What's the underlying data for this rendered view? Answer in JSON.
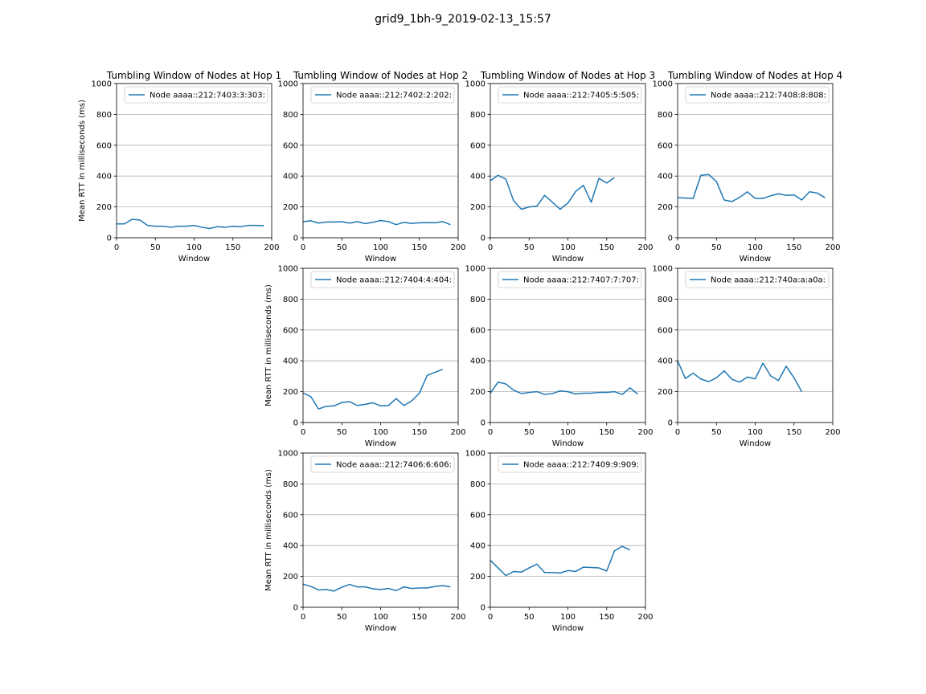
{
  "figure": {
    "suptitle": "grid9_1bh-9_2019-02-13_15:57",
    "line_color": "#1f77b4"
  },
  "chart_data": [
    {
      "id": "p1",
      "type": "line",
      "grid_row": 0,
      "grid_col": 0,
      "title": "Tumbling Window of Nodes at Hop 1",
      "xlabel": "Window",
      "ylabel": "Mean RTT in milliseconds (ms)",
      "xlim": [
        0,
        200
      ],
      "ylim": [
        0,
        1000
      ],
      "xticks": [
        0,
        50,
        100,
        150,
        200
      ],
      "yticks": [
        0,
        200,
        400,
        600,
        800,
        1000
      ],
      "grid": "y",
      "legend_loc": "upper right",
      "series": [
        {
          "name": "Node aaaa::212:7403:3:303:",
          "x": [
            0,
            10,
            20,
            30,
            40,
            50,
            60,
            70,
            80,
            90,
            100,
            110,
            120,
            130,
            140,
            150,
            160,
            170,
            180,
            190
          ],
          "y": [
            90,
            90,
            120,
            115,
            80,
            75,
            75,
            68,
            75,
            75,
            80,
            68,
            60,
            72,
            68,
            75,
            72,
            80,
            80,
            78
          ]
        }
      ]
    },
    {
      "id": "p2",
      "type": "line",
      "grid_row": 0,
      "grid_col": 1,
      "title": "Tumbling Window of Nodes at Hop 2",
      "xlabel": "Window",
      "ylabel": "",
      "xlim": [
        0,
        200
      ],
      "ylim": [
        0,
        1000
      ],
      "xticks": [
        0,
        50,
        100,
        150,
        200
      ],
      "yticks": [
        0,
        200,
        400,
        600,
        800,
        1000
      ],
      "grid": "y",
      "legend_loc": "upper right",
      "series": [
        {
          "name": "Node aaaa::212:7402:2:202:",
          "x": [
            0,
            10,
            20,
            30,
            40,
            50,
            60,
            70,
            80,
            90,
            100,
            110,
            120,
            130,
            140,
            150,
            160,
            170,
            180,
            190
          ],
          "y": [
            105,
            110,
            95,
            102,
            102,
            104,
            95,
            105,
            92,
            100,
            112,
            105,
            85,
            100,
            93,
            97,
            98,
            97,
            105,
            85
          ]
        }
      ]
    },
    {
      "id": "p3",
      "type": "line",
      "grid_row": 0,
      "grid_col": 2,
      "title": "Tumbling Window of Nodes at Hop 3",
      "xlabel": "Window",
      "ylabel": "",
      "xlim": [
        0,
        200
      ],
      "ylim": [
        0,
        1000
      ],
      "xticks": [
        0,
        50,
        100,
        150,
        200
      ],
      "yticks": [
        0,
        200,
        400,
        600,
        800,
        1000
      ],
      "grid": "y",
      "legend_loc": "upper right",
      "series": [
        {
          "name": "Node aaaa::212:7405:5:505:",
          "x": [
            0,
            10,
            20,
            30,
            40,
            50,
            60,
            70,
            80,
            90,
            100,
            110,
            120,
            130,
            140,
            150,
            160
          ],
          "y": [
            370,
            405,
            380,
            240,
            185,
            200,
            205,
            275,
            230,
            185,
            225,
            300,
            340,
            230,
            385,
            355,
            390
          ]
        }
      ]
    },
    {
      "id": "p4",
      "type": "line",
      "grid_row": 0,
      "grid_col": 3,
      "title": "Tumbling Window of Nodes at Hop 4",
      "xlabel": "Window",
      "ylabel": "",
      "xlim": [
        0,
        200
      ],
      "ylim": [
        0,
        1000
      ],
      "xticks": [
        0,
        50,
        100,
        150,
        200
      ],
      "yticks": [
        0,
        200,
        400,
        600,
        800,
        1000
      ],
      "grid": "y",
      "legend_loc": "upper right",
      "series": [
        {
          "name": "Node aaaa::212:7408:8:808:",
          "x": [
            0,
            20,
            30,
            40,
            50,
            60,
            70,
            80,
            90,
            100,
            110,
            120,
            130,
            140,
            150,
            160,
            170,
            180,
            190
          ],
          "y": [
            260,
            255,
            405,
            410,
            365,
            245,
            235,
            262,
            298,
            255,
            255,
            272,
            285,
            275,
            278,
            245,
            298,
            290,
            260
          ]
        }
      ]
    },
    {
      "id": "p5",
      "type": "line",
      "grid_row": 1,
      "grid_col": 1,
      "title": "",
      "xlabel": "Window",
      "ylabel": "Mean RTT in milliseconds (ms)",
      "xlim": [
        0,
        200
      ],
      "ylim": [
        0,
        1000
      ],
      "xticks": [
        0,
        50,
        100,
        150,
        200
      ],
      "yticks": [
        0,
        200,
        400,
        600,
        800,
        1000
      ],
      "grid": "y",
      "legend_loc": "upper right",
      "series": [
        {
          "name": "Node aaaa::212:7404:4:404:",
          "x": [
            0,
            10,
            20,
            30,
            40,
            50,
            60,
            70,
            80,
            90,
            100,
            110,
            120,
            130,
            140,
            150,
            160,
            170,
            180
          ],
          "y": [
            192,
            168,
            88,
            105,
            108,
            130,
            135,
            110,
            118,
            128,
            108,
            110,
            155,
            110,
            140,
            190,
            305,
            325,
            345
          ]
        }
      ]
    },
    {
      "id": "p6",
      "type": "line",
      "grid_row": 1,
      "grid_col": 2,
      "title": "",
      "xlabel": "Window",
      "ylabel": "",
      "xlim": [
        0,
        200
      ],
      "ylim": [
        0,
        1000
      ],
      "xticks": [
        0,
        50,
        100,
        150,
        200
      ],
      "yticks": [
        0,
        200,
        400,
        600,
        800,
        1000
      ],
      "grid": "y",
      "legend_loc": "upper right",
      "series": [
        {
          "name": "Node aaaa::212:7407:7:707:",
          "x": [
            0,
            10,
            20,
            30,
            40,
            50,
            60,
            70,
            80,
            90,
            100,
            110,
            120,
            130,
            140,
            150,
            160,
            170,
            180,
            190
          ],
          "y": [
            190,
            262,
            250,
            210,
            188,
            195,
            200,
            182,
            188,
            205,
            200,
            185,
            190,
            190,
            195,
            195,
            200,
            182,
            225,
            185
          ]
        }
      ]
    },
    {
      "id": "p7",
      "type": "line",
      "grid_row": 1,
      "grid_col": 3,
      "title": "",
      "xlabel": "Window",
      "ylabel": "",
      "xlim": [
        0,
        200
      ],
      "ylim": [
        0,
        1000
      ],
      "xticks": [
        0,
        50,
        100,
        150,
        200
      ],
      "yticks": [
        0,
        200,
        400,
        600,
        800,
        1000
      ],
      "grid": "y",
      "legend_loc": "upper right",
      "series": [
        {
          "name": "Node aaaa::212:740a:a:a0a:",
          "x": [
            0,
            10,
            20,
            30,
            40,
            50,
            60,
            70,
            80,
            90,
            100,
            110,
            120,
            130,
            140,
            150,
            160
          ],
          "y": [
            400,
            285,
            320,
            282,
            265,
            290,
            335,
            280,
            262,
            295,
            283,
            385,
            302,
            272,
            365,
            290,
            200
          ]
        }
      ]
    },
    {
      "id": "p8",
      "type": "line",
      "grid_row": 2,
      "grid_col": 1,
      "title": "",
      "xlabel": "Window",
      "ylabel": "Mean RTT in milliseconds (ms)",
      "xlim": [
        0,
        200
      ],
      "ylim": [
        0,
        1000
      ],
      "xticks": [
        0,
        50,
        100,
        150,
        200
      ],
      "yticks": [
        0,
        200,
        400,
        600,
        800,
        1000
      ],
      "grid": "y",
      "legend_loc": "upper right",
      "series": [
        {
          "name": "Node aaaa::212:7406:6:606:",
          "x": [
            0,
            10,
            20,
            30,
            40,
            50,
            60,
            70,
            80,
            90,
            100,
            110,
            120,
            130,
            140,
            150,
            160,
            170,
            180,
            190
          ],
          "y": [
            150,
            135,
            112,
            115,
            105,
            130,
            148,
            132,
            132,
            120,
            115,
            122,
            108,
            132,
            122,
            125,
            125,
            135,
            140,
            132
          ]
        }
      ]
    },
    {
      "id": "p9",
      "type": "line",
      "grid_row": 2,
      "grid_col": 2,
      "title": "",
      "xlabel": "Window",
      "ylabel": "",
      "xlim": [
        0,
        200
      ],
      "ylim": [
        0,
        1000
      ],
      "xticks": [
        0,
        50,
        100,
        150,
        200
      ],
      "yticks": [
        0,
        200,
        400,
        600,
        800,
        1000
      ],
      "grid": "y",
      "legend_loc": "upper right",
      "series": [
        {
          "name": "Node aaaa::212:7409:9:909:",
          "x": [
            0,
            10,
            20,
            30,
            40,
            50,
            60,
            70,
            80,
            90,
            100,
            110,
            120,
            130,
            140,
            150,
            160,
            170,
            180
          ],
          "y": [
            305,
            255,
            205,
            232,
            228,
            255,
            280,
            225,
            225,
            222,
            238,
            232,
            260,
            258,
            255,
            235,
            365,
            395,
            372
          ]
        }
      ]
    }
  ]
}
